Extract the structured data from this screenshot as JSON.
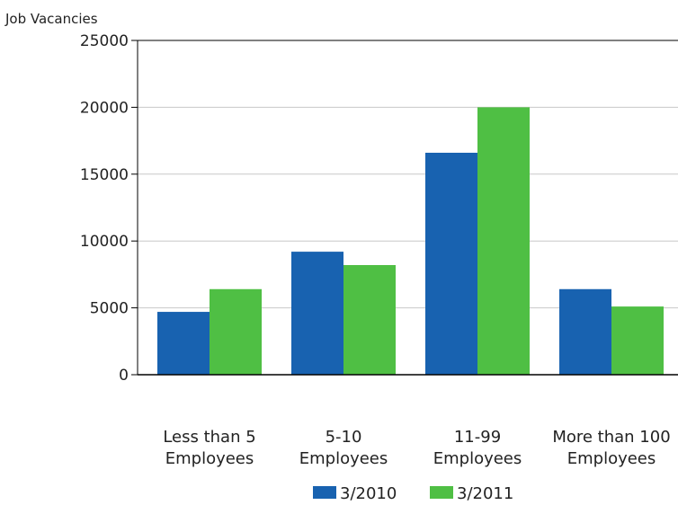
{
  "chart_data": {
    "type": "bar",
    "ylabel": "Job Vacancies",
    "ylim": [
      0,
      25000
    ],
    "yticks": [
      0,
      5000,
      10000,
      15000,
      20000,
      25000
    ],
    "grid": true,
    "legend_position": "bottom",
    "categories": [
      [
        "Less than 5",
        "Employees"
      ],
      [
        "5-10",
        "Employees"
      ],
      [
        "11-99",
        "Employees"
      ],
      [
        "More than 100",
        "Employees"
      ]
    ],
    "series": [
      {
        "name": "3/2010",
        "color": "#1862b0",
        "values": [
          4700,
          9200,
          16600,
          6400
        ]
      },
      {
        "name": "3/2011",
        "color": "#4fbf44",
        "values": [
          6400,
          8200,
          20000,
          5100
        ]
      }
    ]
  }
}
